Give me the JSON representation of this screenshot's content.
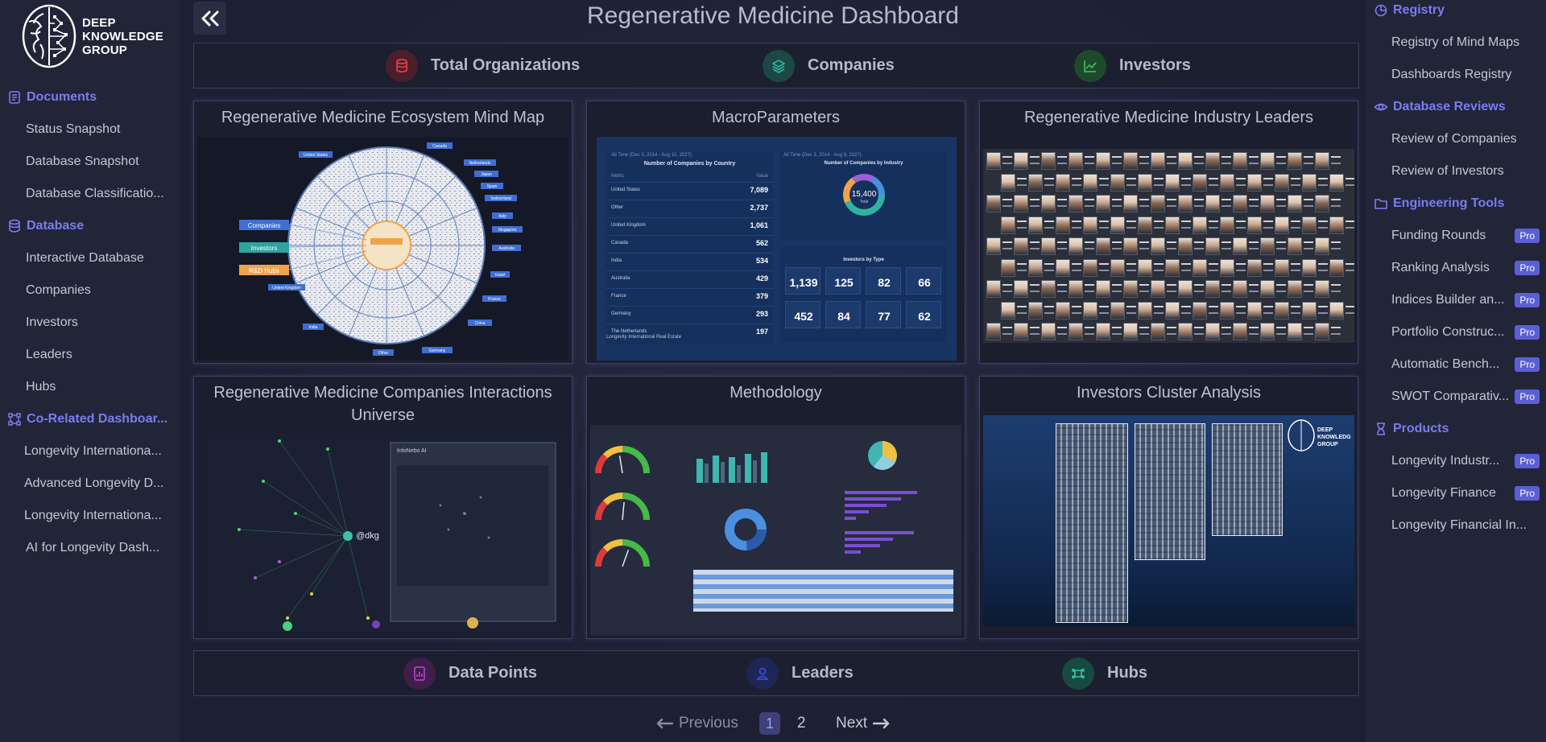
{
  "brand": {
    "logo_text_line1": "DEEP",
    "logo_text_line2": "KNOWLEDGE",
    "logo_text_line3": "GROUP"
  },
  "left_nav": {
    "sections": [
      {
        "label": "Documents",
        "icon": "document-icon",
        "items": [
          "Status Snapshot",
          "Database Snapshot",
          "Database Classificatio..."
        ]
      },
      {
        "label": "Database",
        "icon": "database-icon",
        "items": [
          "Interactive Database",
          "Companies",
          "Investors",
          "Leaders",
          "Hubs"
        ]
      },
      {
        "label": "Co-Related Dashboar...",
        "icon": "network-icon",
        "items": [
          "Longevity Internationa...",
          "Advanced Longevity D...",
          "Longevity Internationa...",
          "AI for Longevity Dash..."
        ]
      }
    ]
  },
  "right_nav": {
    "sections": [
      {
        "label": "Registry",
        "icon": "registry-icon",
        "items": [
          {
            "label": "Registry of Mind Maps",
            "pro": ""
          },
          {
            "label": "Dashboards Registry",
            "pro": ""
          }
        ]
      },
      {
        "label": "Database Reviews",
        "icon": "eye-icon",
        "items": [
          {
            "label": "Review of Companies",
            "pro": ""
          },
          {
            "label": "Review of Investors",
            "pro": ""
          }
        ]
      },
      {
        "label": "Engineering Tools",
        "icon": "folder-icon",
        "items": [
          {
            "label": "Funding Rounds",
            "pro": "Pro"
          },
          {
            "label": "Ranking Analysis",
            "pro": "Pro"
          },
          {
            "label": "Indices Builder an...",
            "pro": "Pro"
          },
          {
            "label": "Portfolio Construc...",
            "pro": "Pro"
          },
          {
            "label": "Automatic Bench...",
            "pro": "Pro"
          },
          {
            "label": "SWOT Comparativ...",
            "pro": "Pro"
          }
        ]
      },
      {
        "label": "Products",
        "icon": "hourglass-icon",
        "items": [
          {
            "label": "Longevity Industr...",
            "pro": "Pro"
          },
          {
            "label": "Longevity Finance",
            "pro": "Pro"
          },
          {
            "label": "Longevity Financial In...",
            "pro": ""
          }
        ]
      }
    ]
  },
  "main": {
    "title": "Regenerative Medicine Dashboard",
    "top_stats": [
      {
        "label": "Total Organizations",
        "icon": "database-icon",
        "color": "#e23b4a"
      },
      {
        "label": "Companies",
        "icon": "layers-icon",
        "color": "#2fb3a0"
      },
      {
        "label": "Investors",
        "icon": "chart-line-icon",
        "color": "#39b65a"
      }
    ],
    "cards": [
      {
        "title": "Regenerative Medicine Ecosystem Mind Map"
      },
      {
        "title": "MacroParameters"
      },
      {
        "title": "Regenerative Medicine Industry Leaders"
      },
      {
        "title": "Regenerative Medicine Companies Interactions Universe"
      },
      {
        "title": "Methodology"
      },
      {
        "title": "Investors Cluster Analysis"
      }
    ],
    "bottom_stats": [
      {
        "label": "Data Points",
        "icon": "file-chart-icon",
        "color": "#b23fc4"
      },
      {
        "label": "Leaders",
        "icon": "user-icon",
        "color": "#3d4ad8"
      },
      {
        "label": "Hubs",
        "icon": "hub-icon",
        "color": "#2cc9a6"
      }
    ],
    "pagination": {
      "previous": "Previous",
      "next": "Next",
      "pages": [
        "1",
        "2"
      ],
      "current": "1"
    }
  },
  "thumbs": {
    "mindmap": {
      "center_labels": [
        "Companies",
        "Investors",
        "R&D Hubs"
      ],
      "country_tags": [
        "United States",
        "Canada",
        "Netherlands",
        "Japan",
        "Spain",
        "Switzerland",
        "Italy",
        "Singapore",
        "Australia",
        "Israel",
        "France",
        "China",
        "Germany",
        "Other",
        "India",
        "United Kingdom"
      ]
    },
    "macro": {
      "left_header": "All Time (Dec 3, 2014 - Aug 10, 2027)",
      "left_title": "Number of Companies by Country",
      "col_metric": "Metric",
      "col_value": "Value",
      "rows": [
        {
          "country": "United States",
          "value": "7,089"
        },
        {
          "country": "Other",
          "value": "2,737"
        },
        {
          "country": "United Kingdom",
          "value": "1,061"
        },
        {
          "country": "Canada",
          "value": "562"
        },
        {
          "country": "India",
          "value": "534"
        },
        {
          "country": "Australia",
          "value": "429"
        },
        {
          "country": "France",
          "value": "379"
        },
        {
          "country": "Germany",
          "value": "293"
        },
        {
          "country": "The Netherlands",
          "value": "197"
        }
      ],
      "footer": "Longevity International Real Estate",
      "right_header": "All Time (Dec 3, 2014 - Aug 9, 2027)",
      "donut_title": "Number of Companies by Industry",
      "donut_value": "15,400",
      "donut_sub": "Total",
      "investors_title": "Investors by Type",
      "kpis_row1": [
        "1,139",
        "125",
        "82",
        "66"
      ],
      "kpis_row2": [
        "452",
        "84",
        "77",
        "62"
      ]
    },
    "methodology": {
      "donut_total": ""
    },
    "universe": {
      "node_label": "@dkg",
      "panel_title": "InfoNebo AI"
    }
  }
}
